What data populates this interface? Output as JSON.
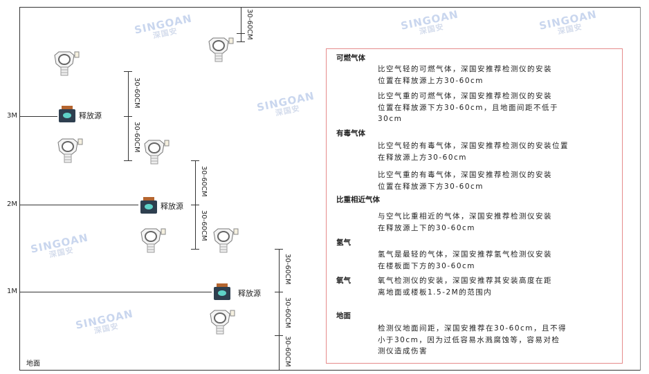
{
  "height_labels": {
    "m3": "3M",
    "m2": "2M",
    "m1": "1M",
    "ground": "地面"
  },
  "source_label": "释放源",
  "dimension_label": "30-60CM",
  "watermark": {
    "brand": "SINGOAN",
    "cn": "深国安"
  },
  "icons": {
    "detector": "gas-detector-icon",
    "source": "gas-source-icon"
  },
  "colors": {
    "panel_border": "#e58a8a",
    "source_body": "#2e3f4f",
    "source_cap": "#b5652f",
    "source_face": "#5fd3c8"
  },
  "panel": {
    "flammable": {
      "title": "可燃气体",
      "light": [
        "比空气轻的可燃气体，深国安推荐检测仪的安装",
        "位置在释放源上方30-60cm"
      ],
      "heavy": [
        "比空气重的可燃气体，深国安推荐检测仪的安装",
        "位置在释放源下方30-60cm，且地面间距不低于",
        "30cm"
      ]
    },
    "toxic": {
      "title": "有毒气体",
      "light": [
        "比空气轻的有毒气体，深国安推荐检测仪的安装位置",
        "在释放源上方30-60cm"
      ],
      "heavy": [
        "比空气重的有毒气体，深国安推荐检测仪的安装",
        "位置在释放源下方30-60cm"
      ]
    },
    "similar": {
      "title": "比重相近气体",
      "body": [
        "与空气比重相近的气体，深国安推荐检测仪安装",
        "在释放源上下的30-60cm"
      ]
    },
    "hydrogen": {
      "title": "氢气",
      "body": [
        "氢气是最轻的气体，深国安推荐氢气检测仪安装",
        "在楼板面下方的30-60cm"
      ]
    },
    "oxygen": {
      "title": "氧气",
      "body": [
        "氧气检测仪的安装，深国安推荐其安装高度在距",
        "离地面或楼板1.5-2M的范围内"
      ]
    },
    "ground": {
      "title": "地面",
      "body": [
        "检测仪地面间距，深国安推荐在30-60cm，且不得",
        "小于30cm，因为过低容易水溅腐蚀等，容易对检",
        "测仪造成伤害"
      ]
    }
  }
}
